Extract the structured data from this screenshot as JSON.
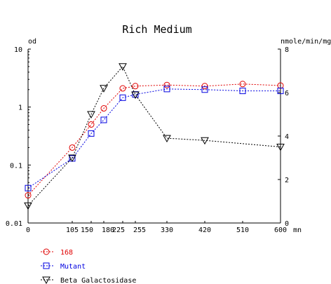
{
  "chart_data": {
    "type": "line",
    "title": "Rich Medium",
    "xlabel": "mn",
    "ylabel_left": "od",
    "ylabel_right": "nmole/min/mg",
    "x_ticks": [
      0,
      105,
      150,
      180,
      225,
      255,
      330,
      420,
      510,
      600
    ],
    "x_tick_labels": [
      "0",
      "105",
      "150",
      "180",
      "225",
      "255",
      "330",
      "420",
      "510",
      "600"
    ],
    "xlim": [
      0,
      600
    ],
    "y_left_scale": "log",
    "y_left_lim": [
      0.01,
      10
    ],
    "y_left_ticks": [
      0.01,
      0.1,
      1,
      10
    ],
    "y_left_tick_labels": [
      "0.01",
      "0.1",
      "1",
      "10"
    ],
    "y_right_scale": "linear",
    "y_right_lim": [
      0,
      8
    ],
    "y_right_ticks": [
      0,
      2,
      4,
      6,
      8
    ],
    "y_right_tick_labels": [
      "0",
      "2",
      "4",
      "6",
      "8"
    ],
    "legend_position": "bottom-left",
    "series": [
      {
        "name": "168",
        "axis": "left",
        "color": "#e00000",
        "marker": "circle",
        "x": [
          0,
          105,
          150,
          180,
          225,
          255,
          330,
          420,
          510,
          600
        ],
        "y": [
          0.03,
          0.2,
          0.5,
          0.95,
          2.1,
          2.3,
          2.4,
          2.3,
          2.5,
          2.35
        ]
      },
      {
        "name": "Mutant",
        "axis": "left",
        "color": "#0000e0",
        "marker": "square",
        "x": [
          0,
          105,
          150,
          180,
          225,
          255,
          330,
          420,
          510,
          600
        ],
        "y": [
          0.04,
          0.13,
          0.35,
          0.6,
          1.45,
          1.65,
          2.05,
          2.0,
          1.9,
          1.9
        ]
      },
      {
        "name": "Beta Galactosidase",
        "axis": "right",
        "color": "#000000",
        "marker": "triangle-down",
        "x": [
          0,
          105,
          150,
          180,
          225,
          255,
          330,
          420,
          510,
          600
        ],
        "y": [
          0.8,
          3.0,
          5.0,
          6.2,
          7.2,
          5.9,
          3.9,
          3.8,
          null,
          3.5
        ]
      }
    ]
  }
}
